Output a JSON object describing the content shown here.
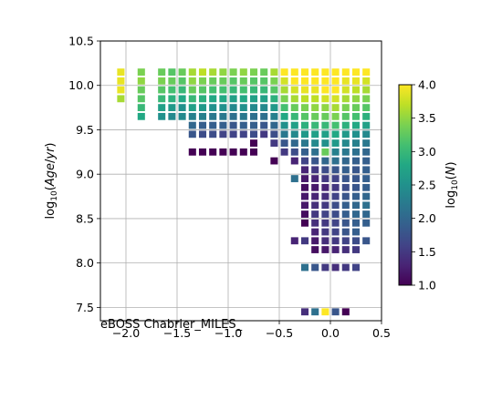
{
  "chart_data": {
    "type": "heatmap",
    "title": "",
    "xlabel": "",
    "ylabel": "log₁₀(Age/yr)",
    "annotation": "eBOSS Chabrier_MILES_",
    "xlim": [
      -2.25,
      0.5
    ],
    "ylim": [
      7.35,
      10.5
    ],
    "x_ticks": [
      -2.0,
      -1.5,
      -1.0,
      -0.5,
      0.0,
      0.5
    ],
    "x_tick_labels": [
      "−2.0",
      "−1.5",
      "−1.0",
      "−0.5",
      "0.0",
      "0.5"
    ],
    "y_ticks": [
      7.5,
      8.0,
      8.5,
      9.0,
      9.5,
      10.0,
      10.5
    ],
    "y_tick_labels": [
      "7.5",
      "8.0",
      "8.5",
      "9.0",
      "9.5",
      "10.0",
      "10.5"
    ],
    "grid": true,
    "colormap": "viridis",
    "colorbar": {
      "label": "log₁₀(N)",
      "range": [
        1.0,
        4.0
      ],
      "ticks": [
        1.0,
        1.5,
        2.0,
        2.5,
        3.0,
        3.5,
        4.0
      ],
      "tick_labels": [
        "1.0",
        "1.5",
        "2.0",
        "2.5",
        "3.0",
        "3.5",
        "4.0"
      ]
    },
    "cell_size": {
      "x": 0.1,
      "y": 0.1
    },
    "columns": [
      {
        "x": -2.05,
        "cells": [
          [
            10.15,
            3.9
          ],
          [
            10.05,
            3.9
          ],
          [
            9.95,
            3.9
          ],
          [
            9.85,
            3.6
          ]
        ]
      },
      {
        "x": -1.85,
        "cells": [
          [
            10.15,
            3.4
          ],
          [
            10.05,
            3.5
          ],
          [
            9.95,
            3.3
          ],
          [
            9.85,
            3.2
          ],
          [
            9.75,
            3.0
          ],
          [
            9.65,
            2.8
          ]
        ]
      },
      {
        "x": -1.65,
        "cells": [
          [
            10.15,
            3.3
          ],
          [
            10.05,
            3.4
          ],
          [
            9.95,
            3.2
          ],
          [
            9.85,
            3.0
          ],
          [
            9.75,
            2.7
          ],
          [
            9.65,
            2.5
          ]
        ]
      },
      {
        "x": -1.55,
        "cells": [
          [
            10.15,
            3.2
          ],
          [
            10.05,
            3.3
          ],
          [
            9.95,
            3.1
          ],
          [
            9.85,
            2.9
          ],
          [
            9.75,
            2.6
          ],
          [
            9.65,
            2.4
          ]
        ]
      },
      {
        "x": -1.45,
        "cells": [
          [
            10.15,
            3.3
          ],
          [
            10.05,
            3.2
          ],
          [
            9.95,
            3.0
          ],
          [
            9.85,
            2.8
          ],
          [
            9.75,
            2.5
          ],
          [
            9.65,
            2.4
          ]
        ]
      },
      {
        "x": -1.35,
        "cells": [
          [
            10.15,
            3.6
          ],
          [
            10.05,
            3.5
          ],
          [
            9.95,
            3.3
          ],
          [
            9.85,
            3.0
          ],
          [
            9.75,
            2.7
          ],
          [
            9.65,
            2.3
          ],
          [
            9.55,
            2.0
          ],
          [
            9.45,
            1.8
          ],
          [
            9.25,
            1.0
          ]
        ]
      },
      {
        "x": -1.25,
        "cells": [
          [
            10.15,
            3.7
          ],
          [
            10.05,
            3.4
          ],
          [
            9.95,
            3.2
          ],
          [
            9.85,
            2.9
          ],
          [
            9.75,
            2.6
          ],
          [
            9.65,
            2.3
          ],
          [
            9.55,
            1.9
          ],
          [
            9.45,
            1.7
          ],
          [
            9.25,
            1.0
          ]
        ]
      },
      {
        "x": -1.15,
        "cells": [
          [
            10.15,
            3.6
          ],
          [
            10.05,
            3.3
          ],
          [
            9.95,
            3.1
          ],
          [
            9.85,
            2.8
          ],
          [
            9.75,
            2.5
          ],
          [
            9.65,
            2.2
          ],
          [
            9.55,
            1.9
          ],
          [
            9.45,
            1.7
          ],
          [
            9.25,
            1.0
          ]
        ]
      },
      {
        "x": -1.05,
        "cells": [
          [
            10.15,
            3.5
          ],
          [
            10.05,
            3.3
          ],
          [
            9.95,
            3.1
          ],
          [
            9.85,
            2.8
          ],
          [
            9.75,
            2.5
          ],
          [
            9.65,
            2.2
          ],
          [
            9.55,
            1.9
          ],
          [
            9.45,
            1.6
          ],
          [
            9.25,
            1.0
          ]
        ]
      },
      {
        "x": -0.95,
        "cells": [
          [
            10.15,
            3.4
          ],
          [
            10.05,
            3.2
          ],
          [
            9.95,
            3.0
          ],
          [
            9.85,
            2.7
          ],
          [
            9.75,
            2.4
          ],
          [
            9.65,
            2.1
          ],
          [
            9.55,
            1.8
          ],
          [
            9.45,
            1.6
          ],
          [
            9.25,
            1.0
          ]
        ]
      },
      {
        "x": -0.85,
        "cells": [
          [
            10.15,
            3.5
          ],
          [
            10.05,
            3.3
          ],
          [
            9.95,
            3.1
          ],
          [
            9.85,
            2.8
          ],
          [
            9.75,
            2.5
          ],
          [
            9.65,
            2.2
          ],
          [
            9.55,
            1.9
          ],
          [
            9.45,
            1.6
          ],
          [
            9.25,
            1.0
          ]
        ]
      },
      {
        "x": -0.75,
        "cells": [
          [
            10.15,
            3.4
          ],
          [
            10.05,
            3.2
          ],
          [
            9.95,
            3.0
          ],
          [
            9.85,
            2.7
          ],
          [
            9.75,
            2.4
          ],
          [
            9.65,
            2.1
          ],
          [
            9.55,
            1.9
          ],
          [
            9.45,
            1.7
          ],
          [
            9.35,
            1.0
          ],
          [
            9.25,
            1.0
          ]
        ]
      },
      {
        "x": -0.65,
        "cells": [
          [
            10.15,
            3.3
          ],
          [
            10.05,
            3.2
          ],
          [
            9.95,
            3.0
          ],
          [
            9.85,
            2.7
          ],
          [
            9.75,
            2.4
          ],
          [
            9.65,
            2.1
          ],
          [
            9.55,
            1.8
          ],
          [
            9.45,
            1.5
          ]
        ]
      },
      {
        "x": -0.55,
        "cells": [
          [
            10.15,
            3.6
          ],
          [
            10.05,
            3.4
          ],
          [
            9.95,
            3.2
          ],
          [
            9.85,
            2.9
          ],
          [
            9.75,
            2.6
          ],
          [
            9.65,
            2.3
          ],
          [
            9.55,
            2.0
          ],
          [
            9.45,
            1.7
          ],
          [
            9.35,
            1.5
          ],
          [
            9.15,
            1.0
          ]
        ]
      },
      {
        "x": -0.45,
        "cells": [
          [
            10.15,
            4.0
          ],
          [
            10.05,
            3.8
          ],
          [
            9.95,
            3.6
          ],
          [
            9.85,
            3.4
          ],
          [
            9.75,
            3.1
          ],
          [
            9.65,
            2.8
          ],
          [
            9.55,
            2.5
          ],
          [
            9.45,
            2.2
          ],
          [
            9.35,
            1.8
          ],
          [
            9.25,
            1.5
          ]
        ]
      },
      {
        "x": -0.35,
        "cells": [
          [
            10.15,
            4.0
          ],
          [
            10.05,
            4.0
          ],
          [
            9.95,
            3.8
          ],
          [
            9.85,
            3.6
          ],
          [
            9.75,
            3.3
          ],
          [
            9.65,
            3.0
          ],
          [
            9.55,
            2.7
          ],
          [
            9.45,
            2.4
          ],
          [
            9.35,
            2.0
          ],
          [
            9.25,
            1.7
          ],
          [
            9.15,
            1.3
          ],
          [
            8.95,
            2.1
          ],
          [
            8.25,
            1.3
          ]
        ]
      },
      {
        "x": -0.25,
        "cells": [
          [
            10.15,
            4.0
          ],
          [
            10.05,
            4.0
          ],
          [
            9.95,
            3.9
          ],
          [
            9.85,
            3.7
          ],
          [
            9.75,
            3.4
          ],
          [
            9.65,
            3.2
          ],
          [
            9.55,
            2.9
          ],
          [
            9.45,
            2.6
          ],
          [
            9.35,
            2.2
          ],
          [
            9.25,
            1.9
          ],
          [
            9.15,
            1.6
          ],
          [
            9.05,
            1.3
          ],
          [
            8.95,
            1.2
          ],
          [
            8.85,
            1.1
          ],
          [
            8.75,
            1.2
          ],
          [
            8.65,
            1.2
          ],
          [
            8.55,
            1.1
          ],
          [
            8.45,
            1.0
          ],
          [
            8.25,
            1.5
          ],
          [
            7.95,
            2.1
          ],
          [
            7.45,
            1.4
          ]
        ]
      },
      {
        "x": -0.15,
        "cells": [
          [
            10.15,
            4.0
          ],
          [
            10.05,
            4.0
          ],
          [
            9.95,
            3.9
          ],
          [
            9.85,
            3.7
          ],
          [
            9.75,
            3.5
          ],
          [
            9.65,
            3.3
          ],
          [
            9.55,
            3.0
          ],
          [
            9.45,
            2.7
          ],
          [
            9.35,
            2.4
          ],
          [
            9.25,
            2.1
          ],
          [
            9.15,
            1.8
          ],
          [
            9.05,
            1.5
          ],
          [
            8.95,
            1.3
          ],
          [
            8.85,
            1.2
          ],
          [
            8.75,
            1.3
          ],
          [
            8.65,
            1.4
          ],
          [
            8.55,
            1.5
          ],
          [
            8.45,
            1.4
          ],
          [
            8.35,
            1.3
          ],
          [
            8.25,
            1.2
          ],
          [
            8.15,
            1.1
          ],
          [
            7.95,
            1.8
          ],
          [
            7.45,
            2.1
          ]
        ]
      },
      {
        "x": -0.05,
        "cells": [
          [
            10.15,
            4.0
          ],
          [
            10.05,
            4.0
          ],
          [
            9.95,
            4.0
          ],
          [
            9.85,
            3.8
          ],
          [
            9.75,
            3.5
          ],
          [
            9.65,
            3.3
          ],
          [
            9.55,
            3.0
          ],
          [
            9.45,
            2.7
          ],
          [
            9.35,
            2.5
          ],
          [
            9.25,
            3.3
          ],
          [
            9.15,
            2.0
          ],
          [
            9.05,
            1.7
          ],
          [
            8.95,
            1.5
          ],
          [
            8.85,
            1.3
          ],
          [
            8.75,
            1.4
          ],
          [
            8.65,
            1.5
          ],
          [
            8.55,
            1.6
          ],
          [
            8.45,
            1.5
          ],
          [
            8.35,
            1.5
          ],
          [
            8.25,
            1.4
          ],
          [
            8.15,
            1.2
          ],
          [
            7.95,
            1.5
          ],
          [
            7.45,
            4.0
          ]
        ]
      },
      {
        "x": 0.05,
        "cells": [
          [
            10.15,
            4.0
          ],
          [
            10.05,
            4.0
          ],
          [
            9.95,
            4.0
          ],
          [
            9.85,
            3.8
          ],
          [
            9.75,
            3.6
          ],
          [
            9.65,
            3.4
          ],
          [
            9.55,
            3.1
          ],
          [
            9.45,
            2.8
          ],
          [
            9.35,
            2.6
          ],
          [
            9.25,
            2.3
          ],
          [
            9.15,
            2.1
          ],
          [
            9.05,
            1.8
          ],
          [
            8.95,
            1.6
          ],
          [
            8.85,
            1.5
          ],
          [
            8.75,
            1.6
          ],
          [
            8.65,
            1.7
          ],
          [
            8.55,
            1.7
          ],
          [
            8.45,
            1.6
          ],
          [
            8.35,
            1.6
          ],
          [
            8.25,
            1.5
          ],
          [
            8.15,
            1.3
          ],
          [
            7.95,
            1.4
          ],
          [
            7.45,
            1.8
          ]
        ]
      },
      {
        "x": 0.15,
        "cells": [
          [
            10.15,
            4.0
          ],
          [
            10.05,
            3.9
          ],
          [
            9.95,
            3.8
          ],
          [
            9.85,
            3.6
          ],
          [
            9.75,
            3.4
          ],
          [
            9.65,
            3.2
          ],
          [
            9.55,
            2.9
          ],
          [
            9.45,
            2.6
          ],
          [
            9.35,
            2.4
          ],
          [
            9.25,
            2.2
          ],
          [
            9.15,
            2.0
          ],
          [
            9.05,
            1.9
          ],
          [
            8.95,
            1.8
          ],
          [
            8.85,
            1.7
          ],
          [
            8.75,
            1.8
          ],
          [
            8.65,
            1.9
          ],
          [
            8.55,
            1.9
          ],
          [
            8.45,
            1.8
          ],
          [
            8.35,
            1.8
          ],
          [
            8.25,
            1.6
          ],
          [
            8.15,
            1.4
          ],
          [
            7.95,
            1.5
          ],
          [
            7.45,
            1.0
          ]
        ]
      },
      {
        "x": 0.25,
        "cells": [
          [
            10.15,
            4.0
          ],
          [
            10.05,
            3.9
          ],
          [
            9.95,
            3.7
          ],
          [
            9.85,
            3.5
          ],
          [
            9.75,
            3.3
          ],
          [
            9.65,
            3.1
          ],
          [
            9.55,
            2.8
          ],
          [
            9.45,
            2.5
          ],
          [
            9.35,
            2.3
          ],
          [
            9.25,
            2.1
          ],
          [
            9.15,
            1.9
          ],
          [
            9.05,
            1.8
          ],
          [
            8.95,
            1.8
          ],
          [
            8.85,
            1.8
          ],
          [
            8.75,
            1.9
          ],
          [
            8.65,
            2.0
          ],
          [
            8.55,
            2.0
          ],
          [
            8.45,
            1.9
          ],
          [
            8.35,
            1.9
          ],
          [
            8.25,
            1.7
          ],
          [
            8.15,
            1.5
          ],
          [
            7.95,
            1.6
          ]
        ]
      },
      {
        "x": 0.35,
        "cells": [
          [
            10.15,
            4.0
          ],
          [
            10.05,
            3.8
          ],
          [
            9.95,
            3.6
          ],
          [
            9.85,
            3.4
          ],
          [
            9.75,
            3.2
          ],
          [
            9.65,
            2.9
          ],
          [
            9.55,
            2.7
          ],
          [
            9.45,
            2.4
          ],
          [
            9.35,
            2.2
          ],
          [
            9.25,
            2.0
          ],
          [
            9.15,
            1.9
          ],
          [
            9.05,
            1.9
          ],
          [
            8.95,
            1.9
          ],
          [
            8.85,
            1.9
          ],
          [
            8.75,
            2.0
          ],
          [
            8.65,
            2.1
          ],
          [
            8.55,
            2.0
          ],
          [
            8.45,
            1.9
          ],
          [
            8.25,
            1.8
          ]
        ]
      }
    ]
  }
}
